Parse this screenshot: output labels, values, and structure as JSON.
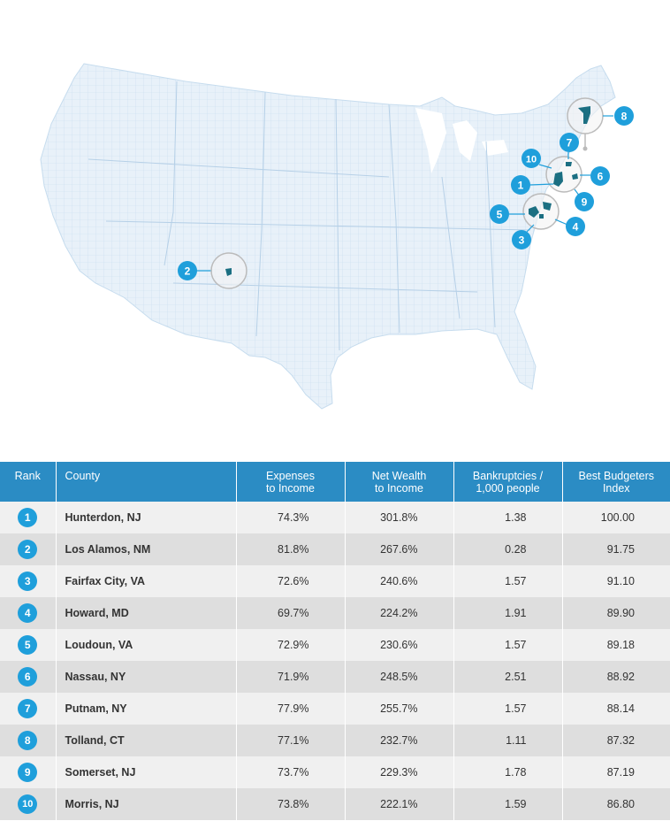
{
  "map": {
    "colors": {
      "land": "#e8f1f9",
      "county_lines": "#c6dcee",
      "highlight": "#1b6f82",
      "marker": "#1f9fdb",
      "callout": "#bbbbbb"
    },
    "markers": [
      "1",
      "2",
      "3",
      "4",
      "5",
      "6",
      "7",
      "8",
      "9",
      "10"
    ]
  },
  "table": {
    "headers": {
      "rank": "Rank",
      "county": "County",
      "expenses_1": "Expenses",
      "expenses_2": "to Income",
      "networth_1": "Net Wealth",
      "networth_2": "to Income",
      "bankrupt_1": "Bankruptcies /",
      "bankrupt_2": "1,000 people",
      "index_1": "Best Budgeters",
      "index_2": "Index"
    },
    "rows": [
      {
        "rank": "1",
        "county": "Hunterdon, NJ",
        "expenses": "74.3%",
        "net_wealth": "301.8%",
        "bankruptcies": "1.38",
        "index": "100.00"
      },
      {
        "rank": "2",
        "county": "Los Alamos, NM",
        "expenses": "81.8%",
        "net_wealth": "267.6%",
        "bankruptcies": "0.28",
        "index": "91.75"
      },
      {
        "rank": "3",
        "county": "Fairfax City, VA",
        "expenses": "72.6%",
        "net_wealth": "240.6%",
        "bankruptcies": "1.57",
        "index": "91.10"
      },
      {
        "rank": "4",
        "county": "Howard, MD",
        "expenses": "69.7%",
        "net_wealth": "224.2%",
        "bankruptcies": "1.91",
        "index": "89.90"
      },
      {
        "rank": "5",
        "county": "Loudoun, VA",
        "expenses": "72.9%",
        "net_wealth": "230.6%",
        "bankruptcies": "1.57",
        "index": "89.18"
      },
      {
        "rank": "6",
        "county": "Nassau, NY",
        "expenses": "71.9%",
        "net_wealth": "248.5%",
        "bankruptcies": "2.51",
        "index": "88.92"
      },
      {
        "rank": "7",
        "county": "Putnam, NY",
        "expenses": "77.9%",
        "net_wealth": "255.7%",
        "bankruptcies": "1.57",
        "index": "88.14"
      },
      {
        "rank": "8",
        "county": "Tolland, CT",
        "expenses": "77.1%",
        "net_wealth": "232.7%",
        "bankruptcies": "1.11",
        "index": "87.32"
      },
      {
        "rank": "9",
        "county": "Somerset, NJ",
        "expenses": "73.7%",
        "net_wealth": "229.3%",
        "bankruptcies": "1.78",
        "index": "87.19"
      },
      {
        "rank": "10",
        "county": "Morris, NJ",
        "expenses": "73.8%",
        "net_wealth": "222.1%",
        "bankruptcies": "1.59",
        "index": "86.80"
      }
    ]
  }
}
